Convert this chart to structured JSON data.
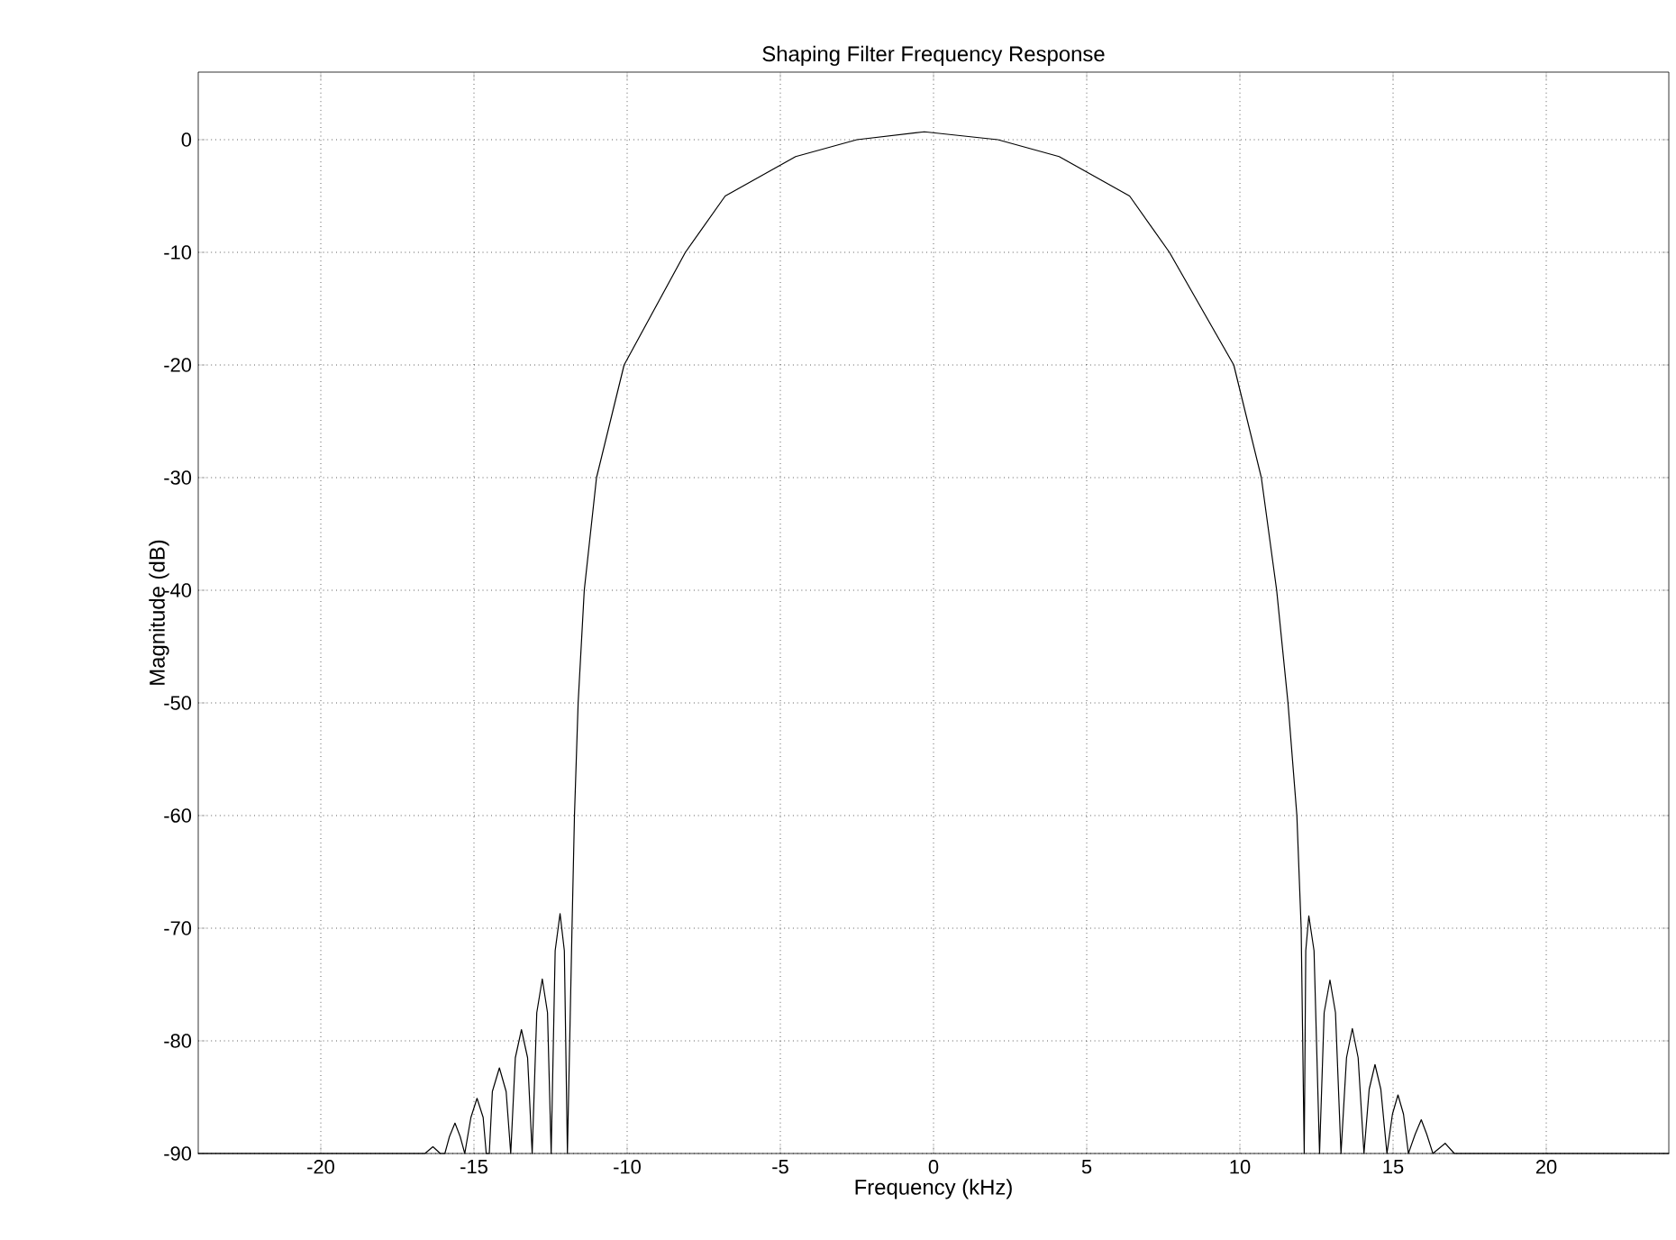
{
  "chart_data": {
    "type": "line",
    "title": "Shaping Filter Frequency Response",
    "xlabel": "Frequency (kHz)",
    "ylabel": "Magnitude (dB)",
    "x": [
      -24,
      -16.6,
      -16.34,
      -16.1,
      -15.95,
      -15.8,
      -15.62,
      -15.45,
      -15.3,
      -15.1,
      -14.9,
      -14.7,
      -14.6,
      -14.5,
      -14.4,
      -14.17,
      -13.95,
      -13.8,
      -13.65,
      -13.45,
      -13.25,
      -13.1,
      -12.95,
      -12.77,
      -12.6,
      -12.48,
      -12.35,
      -12.19,
      -12.05,
      -11.95,
      -11.8,
      -11.72,
      -11.6,
      -11.4,
      -11.0,
      -10.1,
      -8.1,
      -6.8,
      -4.5,
      -2.5,
      -0.3,
      2.1,
      4.1,
      6.4,
      7.7,
      9.8,
      10.7,
      11.2,
      11.57,
      11.86,
      12.0,
      12.1,
      12.15,
      12.25,
      12.42,
      12.6,
      12.75,
      12.94,
      13.12,
      13.3,
      13.48,
      13.67,
      13.86,
      14.05,
      14.22,
      14.41,
      14.6,
      14.8,
      14.98,
      15.16,
      15.34,
      15.5,
      15.72,
      15.92,
      16.1,
      16.3,
      16.7,
      17.0,
      24
    ],
    "values": [
      -90,
      -90,
      -89.4,
      -90,
      -90,
      -88.5,
      -87.3,
      -88.5,
      -90,
      -86.8,
      -85.1,
      -86.8,
      -90,
      -90,
      -84.5,
      -82.4,
      -84.5,
      -90,
      -81.5,
      -79.0,
      -81.5,
      -90,
      -77.5,
      -74.5,
      -77.5,
      -90,
      -72,
      -68.7,
      -72,
      -90,
      -70,
      -60,
      -50,
      -40,
      -30,
      -20,
      -10,
      -5,
      -1.5,
      0,
      0.7,
      0,
      -1.5,
      -5,
      -10,
      -20,
      -30,
      -40,
      -50,
      -60,
      -70,
      -90,
      -72,
      -68.9,
      -72,
      -90,
      -77.5,
      -74.6,
      -77.5,
      -90,
      -81.5,
      -78.9,
      -81.5,
      -90,
      -84.3,
      -82.1,
      -84.3,
      -90,
      -86.5,
      -84.8,
      -86.5,
      -90,
      -88.3,
      -87.0,
      -88.3,
      -90,
      -89.1,
      -90,
      -90
    ],
    "color": "#000000",
    "xlim": [
      -24,
      24
    ],
    "ylim": [
      -90,
      6
    ],
    "xticks": [
      -20,
      -15,
      -10,
      -5,
      0,
      5,
      10,
      15,
      20
    ],
    "yticks": [
      -90,
      -80,
      -70,
      -60,
      -50,
      -40,
      -30,
      -20,
      -10,
      0
    ],
    "grid": true,
    "line_style": "solid",
    "marker": "none"
  }
}
